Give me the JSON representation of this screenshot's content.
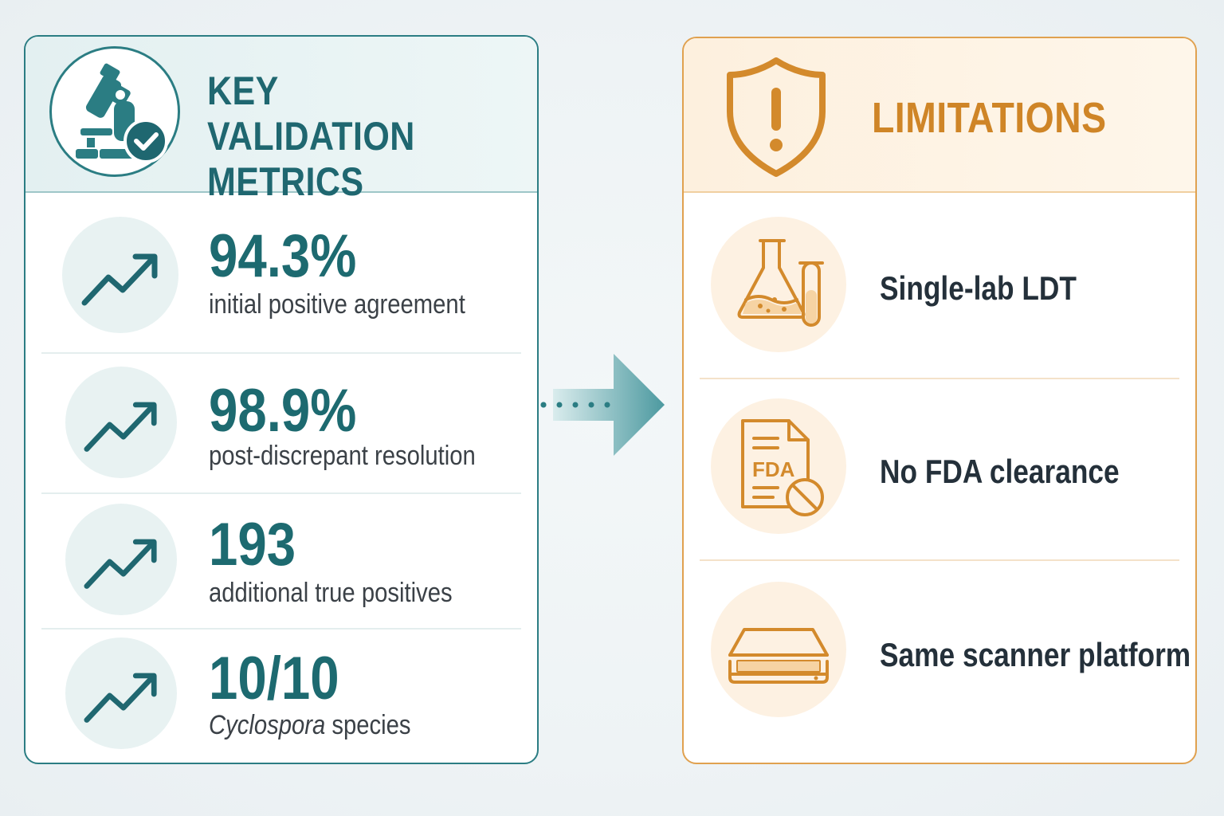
{
  "left_panel": {
    "title_line1": "KEY VALIDATION",
    "title_line2": "METRICS",
    "icon": "microscope-check-icon",
    "metrics": [
      {
        "value": "94.3%",
        "label": "initial positive agreement",
        "icon": "trend-up-icon"
      },
      {
        "value": "98.9%",
        "label": "post-discrepant resolution",
        "icon": "trend-up-icon"
      },
      {
        "value": "193",
        "label": "additional true positives",
        "icon": "trend-up-icon"
      },
      {
        "value": "10/10",
        "label_italic": "Cyclospora",
        "label_rest": " species",
        "icon": "trend-up-icon"
      }
    ]
  },
  "right_panel": {
    "title": "LIMITATIONS",
    "icon": "shield-warning-icon",
    "items": [
      {
        "label": "Single-lab LDT",
        "icon": "flask-tube-icon"
      },
      {
        "label": "No FDA clearance",
        "icon": "fda-document-prohibited-icon",
        "icon_text": "FDA"
      },
      {
        "label": "Same scanner platform",
        "icon": "scanner-icon"
      }
    ]
  },
  "colors": {
    "teal": "#1d6a70",
    "orange": "#cf8527",
    "teal_border": "#2b7d83",
    "orange_border": "#e0a14f"
  }
}
